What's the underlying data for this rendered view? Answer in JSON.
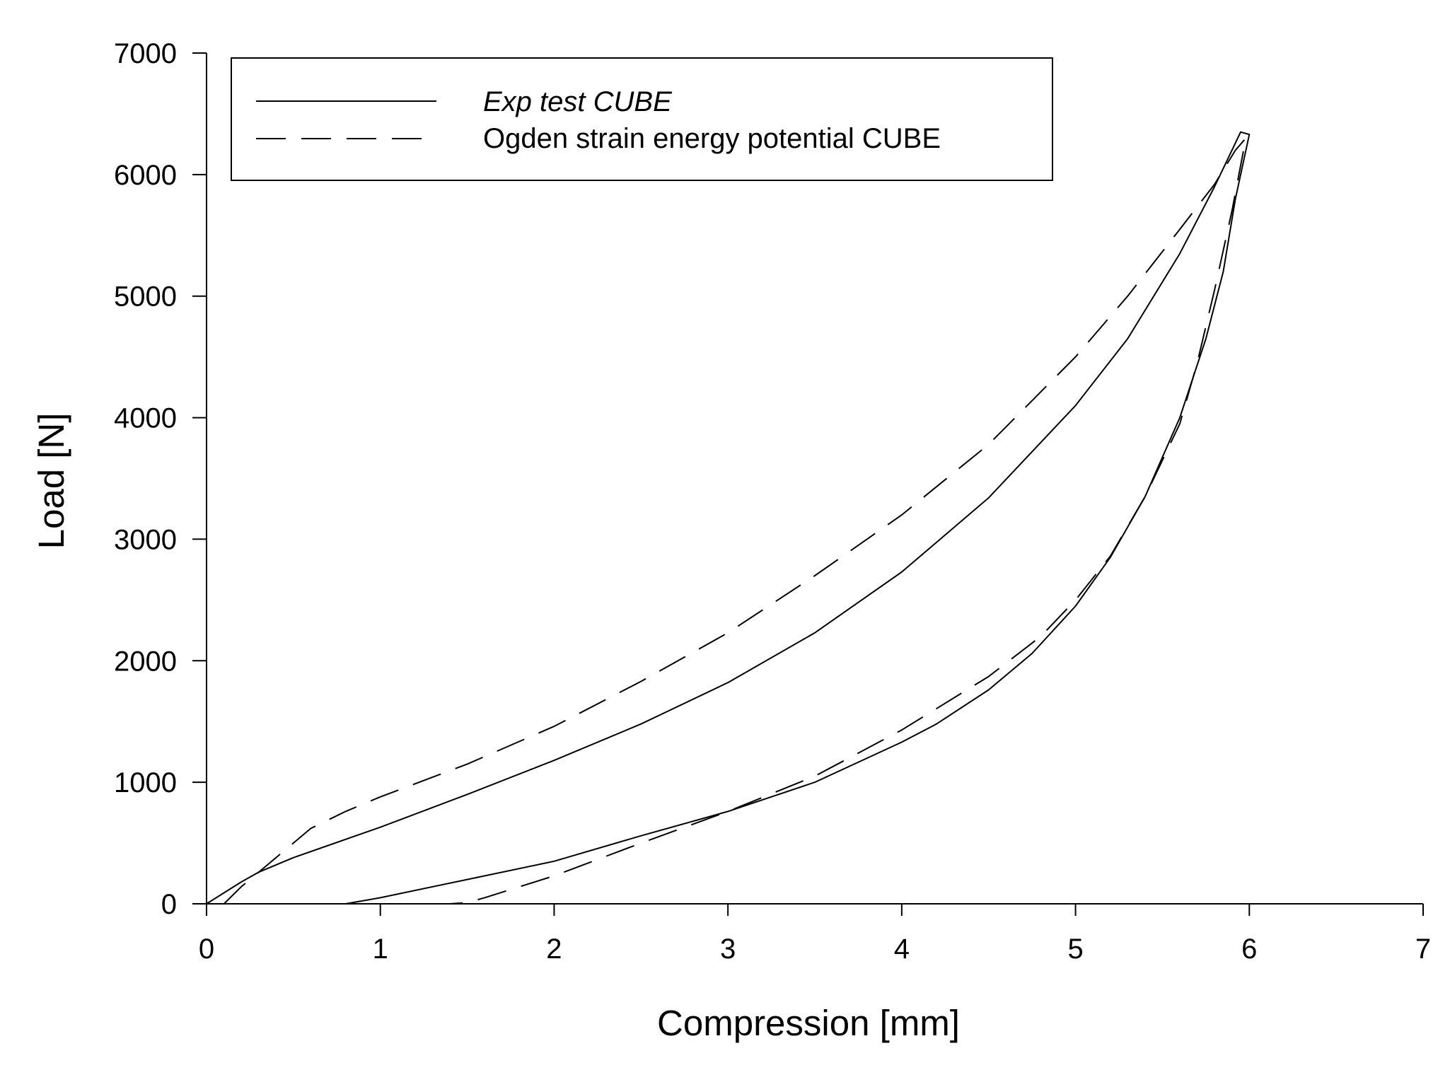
{
  "chart_data": {
    "type": "line",
    "title": "",
    "xlabel": "Compression [mm]",
    "ylabel": "Load [N]",
    "xlim": [
      0,
      7
    ],
    "ylim": [
      0,
      7000
    ],
    "xticks": [
      0,
      1,
      2,
      3,
      4,
      5,
      6,
      7
    ],
    "yticks": [
      0,
      1000,
      2000,
      3000,
      4000,
      5000,
      6000,
      7000
    ],
    "xtick_labels": [
      "0",
      "1",
      "2",
      "3",
      "4",
      "5",
      "6",
      "7"
    ],
    "ytick_labels": [
      "0",
      "1000",
      "2000",
      "3000",
      "4000",
      "5000",
      "6000",
      "7000"
    ],
    "grid": false,
    "legend_position": "top-left",
    "series": [
      {
        "name": "Exp test CUBE",
        "style": "solid",
        "color": "#000000",
        "x": [
          0,
          0.1,
          0.2,
          0.3,
          0.5,
          0.7,
          1.0,
          1.5,
          2.0,
          2.5,
          3.0,
          3.5,
          4.0,
          4.5,
          5.0,
          5.3,
          5.6,
          5.8,
          5.95,
          6.0,
          5.92,
          5.85,
          5.75,
          5.6,
          5.4,
          5.2,
          5.0,
          4.75,
          4.5,
          4.2,
          4.0,
          3.5,
          3.0,
          2.5,
          2.0,
          1.5,
          1.0,
          0.8
        ],
        "y": [
          0,
          90,
          180,
          260,
          380,
          480,
          630,
          900,
          1180,
          1480,
          1820,
          2230,
          2730,
          3340,
          4100,
          4650,
          5350,
          5900,
          6350,
          6330,
          5800,
          5200,
          4650,
          4000,
          3350,
          2850,
          2450,
          2060,
          1760,
          1480,
          1330,
          1000,
          760,
          560,
          350,
          200,
          50,
          0
        ]
      },
      {
        "name": "Ogden strain energy potential CUBE",
        "style": "dashed",
        "color": "#000000",
        "x": [
          0.1,
          0.2,
          0.4,
          0.6,
          0.8,
          1.0,
          1.5,
          2.0,
          2.5,
          3.0,
          3.5,
          4.0,
          4.5,
          5.0,
          5.3,
          5.6,
          5.8,
          5.92,
          5.98,
          5.9,
          5.8,
          5.7,
          5.6,
          5.4,
          5.2,
          5.0,
          4.8,
          4.5,
          4.0,
          3.5,
          3.0,
          2.5,
          2.0,
          1.8,
          1.6,
          1.5,
          1.4
        ],
        "y": [
          0,
          140,
          380,
          620,
          760,
          880,
          1150,
          1460,
          1830,
          2230,
          2700,
          3200,
          3780,
          4500,
          5000,
          5550,
          5920,
          6200,
          6300,
          5700,
          5050,
          4450,
          3950,
          3350,
          2860,
          2500,
          2200,
          1870,
          1430,
          1050,
          760,
          500,
          230,
          140,
          50,
          10,
          0
        ]
      }
    ]
  }
}
